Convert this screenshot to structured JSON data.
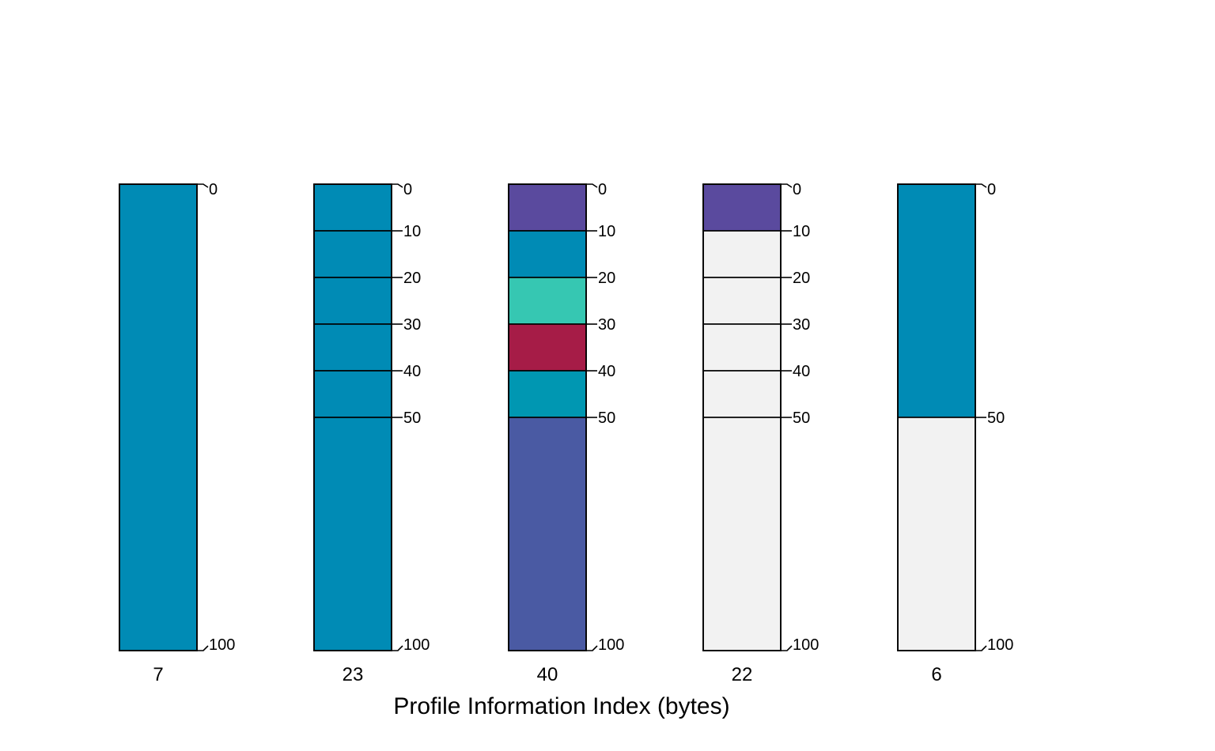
{
  "chart_data": {
    "type": "bar",
    "title": "",
    "xlabel": "Profile Information Index (bytes)",
    "ylabel": "",
    "ylim": [
      0,
      100
    ],
    "y_inverted": true,
    "grid": false,
    "legend": "none",
    "profiles": [
      {
        "label": "7",
        "segments": [
          {
            "from": 0,
            "to": 100,
            "color": "#008bb5"
          }
        ],
        "ticks": [
          0,
          100
        ]
      },
      {
        "label": "23",
        "segments": [
          {
            "from": 0,
            "to": 10,
            "color": "#008bb5"
          },
          {
            "from": 10,
            "to": 20,
            "color": "#008bb5"
          },
          {
            "from": 20,
            "to": 30,
            "color": "#008bb5"
          },
          {
            "from": 30,
            "to": 40,
            "color": "#008bb5"
          },
          {
            "from": 40,
            "to": 50,
            "color": "#008bb5"
          },
          {
            "from": 50,
            "to": 100,
            "color": "#008bb5"
          }
        ],
        "ticks": [
          0,
          10,
          20,
          30,
          40,
          50,
          100
        ]
      },
      {
        "label": "40",
        "segments": [
          {
            "from": 0,
            "to": 10,
            "color": "#5a4a9e"
          },
          {
            "from": 10,
            "to": 20,
            "color": "#008bb5"
          },
          {
            "from": 20,
            "to": 30,
            "color": "#36c7b2"
          },
          {
            "from": 30,
            "to": 40,
            "color": "#a61c47"
          },
          {
            "from": 40,
            "to": 50,
            "color": "#0097b2"
          },
          {
            "from": 50,
            "to": 100,
            "color": "#4a5aa3"
          }
        ],
        "ticks": [
          0,
          10,
          20,
          30,
          40,
          50,
          100
        ]
      },
      {
        "label": "22",
        "segments": [
          {
            "from": 0,
            "to": 10,
            "color": "#5a4a9e"
          },
          {
            "from": 10,
            "to": 20,
            "color": "#f2f2f2"
          },
          {
            "from": 20,
            "to": 30,
            "color": "#f2f2f2"
          },
          {
            "from": 30,
            "to": 40,
            "color": "#f2f2f2"
          },
          {
            "from": 40,
            "to": 50,
            "color": "#f2f2f2"
          },
          {
            "from": 50,
            "to": 100,
            "color": "#f2f2f2"
          }
        ],
        "ticks": [
          0,
          10,
          20,
          30,
          40,
          50,
          100
        ]
      },
      {
        "label": "6",
        "segments": [
          {
            "from": 0,
            "to": 50,
            "color": "#008bb5"
          },
          {
            "from": 50,
            "to": 100,
            "color": "#f2f2f2"
          }
        ],
        "ticks": [
          0,
          50,
          100
        ]
      }
    ]
  }
}
